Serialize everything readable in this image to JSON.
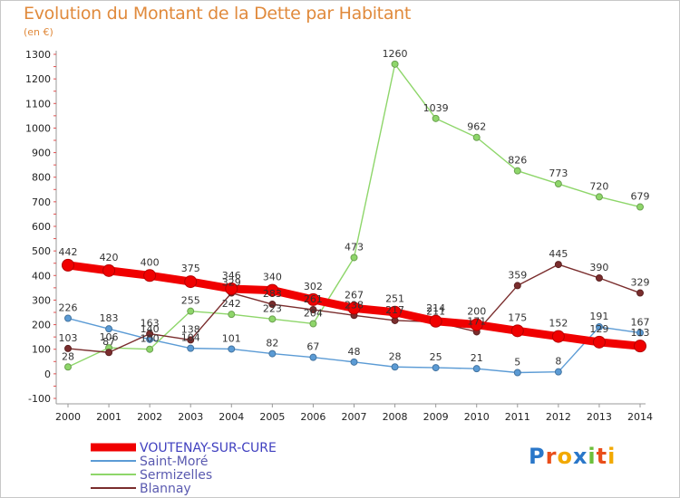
{
  "page": {
    "title": "Evolution du Montant de la Dette par Habitant",
    "subtitle": "(en €)"
  },
  "chart_data": {
    "type": "line",
    "title": "Evolution du Montant de la Dette par Habitant",
    "ylabel": "(en €)",
    "xlabel": "",
    "x": [
      2000,
      2001,
      2002,
      2003,
      2004,
      2005,
      2006,
      2007,
      2008,
      2009,
      2010,
      2011,
      2012,
      2013,
      2014
    ],
    "ylim": [
      -100,
      1300
    ],
    "yticks": [
      -100,
      0,
      100,
      200,
      300,
      400,
      500,
      600,
      700,
      800,
      900,
      1000,
      1100,
      1200,
      1300
    ],
    "grid": false,
    "legend": "bottom-left",
    "series": [
      {
        "name": "Saint-Moré",
        "color": "#5b9bd5",
        "values": [
          226,
          183,
          140,
          104,
          101,
          82,
          67,
          48,
          28,
          25,
          21,
          5,
          8,
          191,
          167
        ]
      },
      {
        "name": "Sermizelles",
        "color": "#8ed66a",
        "values": [
          28,
          106,
          100,
          255,
          242,
          223,
          204,
          473,
          1260,
          1039,
          962,
          826,
          773,
          720,
          679
        ]
      },
      {
        "name": "Blannay",
        "color": "#7a2d2d",
        "values": [
          103,
          87,
          163,
          138,
          329,
          283,
          261,
          238,
          217,
          211,
          171,
          359,
          445,
          390,
          329
        ]
      },
      {
        "name": "VOUTENAY-SUR-CURE",
        "color": "#f00000",
        "values": [
          442,
          420,
          400,
          375,
          346,
          340,
          302,
          267,
          251,
          214,
          200,
          175,
          152,
          129,
          113
        ]
      }
    ]
  },
  "legend_order": [
    "VOUTENAY-SUR-CURE",
    "Saint-Moré",
    "Sermizelles",
    "Blannay"
  ],
  "logo": {
    "letters": [
      "P",
      "r",
      "o",
      "x",
      "i",
      "t",
      "i"
    ],
    "colors": [
      "#2a77c9",
      "#e94e1b",
      "#f2a900",
      "#2a77c9",
      "#6cbf3a",
      "#e94e1b",
      "#f2a900"
    ]
  }
}
